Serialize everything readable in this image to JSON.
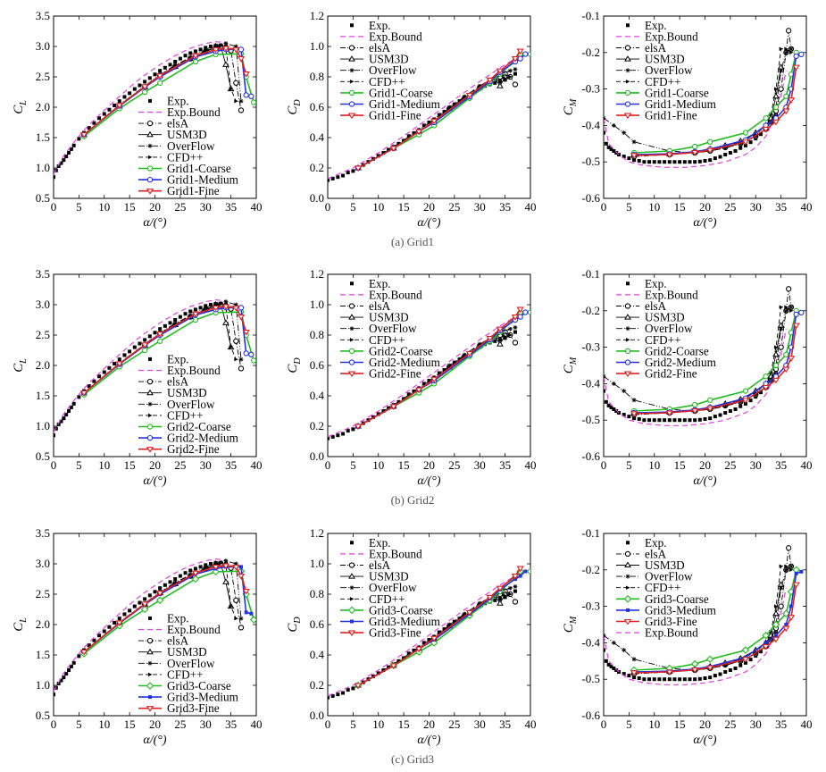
{
  "rows": [
    {
      "grid": "Grid1",
      "caption": "(a) Grid1"
    },
    {
      "grid": "Grid2",
      "caption": "(b) Grid2"
    },
    {
      "grid": "Grid3",
      "caption": "(c) Grid3"
    }
  ],
  "colors": {
    "exp": "#000000",
    "bound": "#e040e0",
    "coarse": "#22bb22",
    "medium": "#2233dd",
    "fine": "#dd2222",
    "ref": "#000000"
  },
  "chart_data": [
    {
      "id": "CL",
      "type": "line",
      "ylabel": "C",
      "ylabel_sub": "L",
      "xlabel": "α/(°)",
      "xlim": [
        0,
        40
      ],
      "ylim": [
        0.5,
        3.5
      ],
      "xticks": [
        0,
        5,
        10,
        15,
        20,
        25,
        30,
        35,
        40
      ],
      "xtick_labels": [
        "0",
        "5",
        "10",
        "15",
        "20",
        "25",
        "30",
        "35",
        "40"
      ],
      "yticks": [
        0.5,
        1.0,
        1.5,
        2.0,
        2.5,
        3.0,
        3.5
      ],
      "ytick_labels": [
        "0.5",
        "1.0",
        "1.5",
        "2.0",
        "2.5",
        "3.0",
        "3.5"
      ],
      "legend_pos": "bottom-right",
      "series": [
        {
          "name": "Exp.",
          "style": "exp",
          "x": [
            0,
            0.5,
            1,
            1.5,
            2,
            2.5,
            3,
            3.5,
            4,
            5,
            6,
            7,
            8,
            9,
            10,
            11,
            12,
            13,
            14,
            15,
            16,
            17,
            18,
            19,
            20,
            21,
            22,
            23,
            24,
            25,
            26,
            27,
            28,
            29,
            30,
            31,
            32,
            33,
            34
          ],
          "y": [
            0.85,
            0.96,
            1.03,
            1.08,
            1.13,
            1.19,
            1.25,
            1.31,
            1.37,
            1.48,
            1.58,
            1.66,
            1.74,
            1.82,
            1.89,
            1.96,
            2.03,
            2.1,
            2.17,
            2.23,
            2.3,
            2.36,
            2.42,
            2.48,
            2.54,
            2.6,
            2.65,
            2.7,
            2.75,
            2.8,
            2.85,
            2.89,
            2.92,
            2.95,
            2.98,
            3.0,
            3.01,
            3.02,
            3.0
          ]
        },
        {
          "name": "Exp.Bound",
          "style": "bound",
          "x": [
            0,
            2,
            4,
            6,
            8,
            10,
            13,
            16,
            18,
            21,
            24,
            27,
            30,
            32,
            34
          ],
          "y": [
            0.9,
            1.2,
            1.42,
            1.62,
            1.79,
            1.95,
            2.18,
            2.4,
            2.53,
            2.7,
            2.85,
            2.97,
            3.05,
            3.08,
            3.06
          ]
        },
        {
          "name": "elsA",
          "style": "elsA",
          "x": [
            6,
            13,
            18,
            21,
            24,
            27,
            30,
            32,
            33,
            34,
            35,
            36,
            37
          ],
          "y": [
            1.55,
            2.02,
            2.33,
            2.52,
            2.67,
            2.8,
            2.92,
            2.98,
            3.0,
            2.98,
            2.93,
            2.4,
            1.95
          ]
        },
        {
          "name": "USM3D",
          "style": "usm3d",
          "x": [
            6,
            13,
            18,
            21,
            24,
            27,
            30,
            32,
            33,
            34,
            35
          ],
          "y": [
            1.55,
            2.02,
            2.33,
            2.52,
            2.67,
            2.8,
            2.92,
            2.98,
            3.0,
            2.7,
            2.3
          ]
        },
        {
          "name": "OverFlow",
          "style": "overflow",
          "x": [
            6,
            13,
            18,
            21,
            24,
            27,
            30,
            32,
            34,
            36,
            37
          ],
          "y": [
            1.55,
            2.04,
            2.35,
            2.54,
            2.69,
            2.82,
            2.95,
            3.02,
            3.05,
            3.0,
            2.1
          ]
        },
        {
          "name": "CFD++",
          "style": "cfdpp",
          "x": [
            6,
            13,
            18,
            21,
            24,
            27,
            30,
            32,
            33,
            34,
            35,
            36
          ],
          "y": [
            1.55,
            2.03,
            2.34,
            2.53,
            2.68,
            2.81,
            2.93,
            2.99,
            3.01,
            2.98,
            2.3,
            2.1
          ]
        },
        {
          "name": "{grid}-Coarse",
          "style": "coarse",
          "x": [
            6,
            13,
            18,
            21,
            28,
            32,
            37,
            38,
            39.5
          ],
          "y": [
            1.52,
            1.98,
            2.25,
            2.4,
            2.75,
            2.87,
            2.88,
            2.5,
            2.08
          ]
        },
        {
          "name": "{grid}-Medium",
          "style": "medium",
          "x": [
            6,
            13,
            18,
            21,
            28,
            32,
            34,
            37,
            38,
            39
          ],
          "y": [
            1.55,
            2.02,
            2.33,
            2.5,
            2.83,
            2.92,
            2.95,
            2.95,
            2.2,
            2.18
          ]
        },
        {
          "name": "{grid}-Fine",
          "style": "fine",
          "x": [
            6,
            13,
            18,
            21,
            28,
            32,
            34,
            36,
            37,
            38
          ],
          "y": [
            1.55,
            2.03,
            2.34,
            2.52,
            2.85,
            2.95,
            2.97,
            2.95,
            2.8,
            2.55
          ]
        }
      ]
    },
    {
      "id": "CD",
      "type": "line",
      "ylabel": "C",
      "ylabel_sub": "D",
      "xlabel": "α/(°)",
      "xlim": [
        0,
        40
      ],
      "ylim": [
        0.0,
        1.2
      ],
      "xticks": [
        0,
        5,
        10,
        15,
        20,
        25,
        30,
        35,
        40
      ],
      "xtick_labels": [
        "0",
        "5",
        "10",
        "15",
        "20",
        "25",
        "30",
        "35",
        "40"
      ],
      "yticks": [
        0.0,
        0.2,
        0.4,
        0.6,
        0.8,
        1.0,
        1.2
      ],
      "ytick_labels": [
        "0.0",
        "0.2",
        "0.4",
        "0.6",
        "0.8",
        "1.0",
        "1.2"
      ],
      "legend_pos": "top-left",
      "series": [
        {
          "name": "Exp.",
          "style": "exp",
          "x": [
            0,
            1,
            2,
            3,
            4,
            5,
            6,
            7,
            8,
            9,
            10,
            11,
            12,
            13,
            14,
            15,
            16,
            17,
            18,
            19,
            20,
            21,
            22,
            23,
            24,
            25,
            26,
            27,
            28,
            29,
            30,
            31,
            32,
            33,
            34,
            35,
            36,
            37
          ],
          "y": [
            0.12,
            0.13,
            0.14,
            0.15,
            0.17,
            0.18,
            0.2,
            0.22,
            0.24,
            0.26,
            0.28,
            0.3,
            0.32,
            0.34,
            0.36,
            0.38,
            0.41,
            0.43,
            0.45,
            0.48,
            0.5,
            0.52,
            0.55,
            0.57,
            0.59,
            0.62,
            0.64,
            0.66,
            0.68,
            0.7,
            0.72,
            0.74,
            0.75,
            0.76,
            0.77,
            0.78,
            0.8,
            0.82
          ]
        },
        {
          "name": "Exp.Bound",
          "style": "bound",
          "x": [
            0,
            5,
            10,
            15,
            20,
            25,
            30,
            34,
            37
          ],
          "y": [
            0.13,
            0.2,
            0.3,
            0.41,
            0.53,
            0.65,
            0.77,
            0.86,
            0.92
          ]
        },
        {
          "name": "elsA",
          "style": "elsA",
          "x": [
            6,
            13,
            18,
            21,
            24,
            27,
            30,
            32,
            34,
            35,
            36,
            37
          ],
          "y": [
            0.2,
            0.33,
            0.44,
            0.51,
            0.59,
            0.66,
            0.73,
            0.77,
            0.8,
            0.82,
            0.8,
            0.75
          ]
        },
        {
          "name": "USM3D",
          "style": "usm3d",
          "x": [
            6,
            13,
            18,
            21,
            24,
            27,
            30,
            32,
            33,
            34,
            35
          ],
          "y": [
            0.2,
            0.33,
            0.44,
            0.51,
            0.59,
            0.66,
            0.73,
            0.77,
            0.79,
            0.74,
            0.8
          ]
        },
        {
          "name": "OverFlow",
          "style": "overflow",
          "x": [
            6,
            13,
            18,
            21,
            24,
            27,
            30,
            32,
            34,
            36,
            37
          ],
          "y": [
            0.2,
            0.34,
            0.45,
            0.52,
            0.6,
            0.67,
            0.74,
            0.78,
            0.82,
            0.84,
            0.85
          ]
        },
        {
          "name": "CFD++",
          "style": "cfdpp",
          "x": [
            6,
            13,
            18,
            21,
            24,
            27,
            30,
            32,
            33,
            34,
            35,
            36
          ],
          "y": [
            0.2,
            0.33,
            0.44,
            0.51,
            0.59,
            0.66,
            0.73,
            0.77,
            0.79,
            0.81,
            0.79,
            0.8
          ]
        },
        {
          "name": "{grid}-Coarse",
          "style": "coarse",
          "x": [
            6,
            13,
            18,
            21,
            28,
            32,
            34,
            37,
            38,
            40
          ],
          "y": [
            0.2,
            0.33,
            0.42,
            0.48,
            0.66,
            0.76,
            0.82,
            0.91,
            0.95,
            0.95
          ]
        },
        {
          "name": "{grid}-Medium",
          "style": "medium",
          "x": [
            6,
            13,
            18,
            21,
            28,
            32,
            34,
            37,
            38,
            39
          ],
          "y": [
            0.2,
            0.33,
            0.44,
            0.5,
            0.67,
            0.77,
            0.83,
            0.9,
            0.92,
            0.95
          ]
        },
        {
          "name": "{grid}-Fine",
          "style": "fine",
          "x": [
            6,
            13,
            18,
            21,
            28,
            32,
            34,
            37,
            38
          ],
          "y": [
            0.2,
            0.33,
            0.44,
            0.51,
            0.68,
            0.78,
            0.84,
            0.92,
            0.97
          ]
        }
      ]
    },
    {
      "id": "CM",
      "type": "line",
      "ylabel": "C",
      "ylabel_sub": "M",
      "xlabel": "α/(°)",
      "xlim": [
        0,
        40
      ],
      "ylim": [
        -0.6,
        -0.1
      ],
      "xticks": [
        0,
        5,
        10,
        15,
        20,
        25,
        30,
        35,
        40
      ],
      "xtick_labels": [
        "0",
        "5",
        "10",
        "15",
        "20",
        "25",
        "30",
        "35",
        "40"
      ],
      "yticks": [
        -0.6,
        -0.5,
        -0.4,
        -0.3,
        -0.2,
        -0.1
      ],
      "ytick_labels": [
        "-0.6",
        "-0.5",
        "-0.4",
        "-0.3",
        "-0.2",
        "-0.1"
      ],
      "legend_pos": "top-left",
      "series": [
        {
          "name": "Exp.",
          "style": "exp",
          "x": [
            0,
            0.5,
            1,
            1.5,
            2,
            2.5,
            3,
            4,
            5,
            6,
            7,
            8,
            9,
            10,
            11,
            12,
            13,
            14,
            15,
            16,
            17,
            18,
            19,
            20,
            21,
            22,
            23,
            24,
            25,
            26,
            27,
            28,
            29,
            30,
            31,
            32,
            33,
            34
          ],
          "y": [
            -0.42,
            -0.45,
            -0.46,
            -0.465,
            -0.47,
            -0.475,
            -0.48,
            -0.485,
            -0.49,
            -0.495,
            -0.497,
            -0.5,
            -0.5,
            -0.5,
            -0.5,
            -0.5,
            -0.5,
            -0.5,
            -0.5,
            -0.5,
            -0.5,
            -0.5,
            -0.499,
            -0.497,
            -0.495,
            -0.49,
            -0.486,
            -0.48,
            -0.475,
            -0.47,
            -0.462,
            -0.455,
            -0.446,
            -0.436,
            -0.424,
            -0.41,
            -0.39,
            -0.37
          ]
        },
        {
          "name": "Exp.Bound",
          "style": "bound",
          "x": [
            0,
            1,
            3,
            5,
            8,
            12,
            16,
            20,
            24,
            28,
            30,
            32,
            33,
            34,
            35,
            36
          ],
          "y": [
            -0.38,
            -0.45,
            -0.48,
            -0.5,
            -0.51,
            -0.515,
            -0.515,
            -0.51,
            -0.5,
            -0.48,
            -0.46,
            -0.43,
            -0.4,
            -0.37,
            -0.32,
            -0.25
          ]
        },
        {
          "name": "elsA",
          "style": "elsA",
          "x": [
            6,
            13,
            18,
            21,
            24,
            27,
            30,
            32,
            33,
            34,
            35,
            36,
            36.5,
            37
          ],
          "y": [
            -0.485,
            -0.48,
            -0.475,
            -0.47,
            -0.46,
            -0.45,
            -0.43,
            -0.41,
            -0.39,
            -0.36,
            -0.3,
            -0.2,
            -0.14,
            -0.19
          ]
        },
        {
          "name": "USM3D",
          "style": "usm3d",
          "x": [
            6,
            13,
            18,
            21,
            24,
            27,
            30,
            32,
            33,
            34,
            35
          ],
          "y": [
            -0.48,
            -0.478,
            -0.472,
            -0.465,
            -0.455,
            -0.443,
            -0.42,
            -0.4,
            -0.38,
            -0.32,
            -0.24
          ]
        },
        {
          "name": "OverFlow",
          "style": "overflow",
          "x": [
            0,
            2,
            4,
            6,
            13,
            18,
            21,
            24,
            27,
            30,
            32,
            33,
            34,
            35,
            36,
            37
          ],
          "y": [
            -0.38,
            -0.4,
            -0.42,
            -0.445,
            -0.47,
            -0.475,
            -0.47,
            -0.462,
            -0.45,
            -0.43,
            -0.41,
            -0.39,
            -0.35,
            -0.25,
            -0.2,
            -0.19
          ]
        },
        {
          "name": "CFD++",
          "style": "cfdpp",
          "x": [
            6,
            13,
            18,
            21,
            24,
            27,
            30,
            32,
            33,
            34,
            35,
            36,
            37
          ],
          "y": [
            -0.483,
            -0.48,
            -0.473,
            -0.467,
            -0.457,
            -0.445,
            -0.425,
            -0.4,
            -0.37,
            -0.3,
            -0.19,
            -0.19,
            -0.2
          ]
        },
        {
          "name": "{grid}-Coarse",
          "style": "coarse",
          "x": [
            6,
            13,
            18,
            21,
            28,
            32,
            34,
            36,
            37,
            38
          ],
          "y": [
            -0.475,
            -0.47,
            -0.458,
            -0.445,
            -0.42,
            -0.38,
            -0.35,
            -0.32,
            -0.26,
            -0.2
          ]
        },
        {
          "name": "{grid}-Medium",
          "style": "medium",
          "x": [
            6,
            13,
            18,
            21,
            28,
            32,
            34,
            36,
            37,
            38,
            39
          ],
          "y": [
            -0.48,
            -0.478,
            -0.472,
            -0.465,
            -0.44,
            -0.4,
            -0.38,
            -0.35,
            -0.3,
            -0.21,
            -0.205
          ]
        },
        {
          "name": "{grid}-Fine",
          "style": "fine",
          "x": [
            6,
            13,
            18,
            21,
            28,
            32,
            34,
            36,
            37,
            38
          ],
          "y": [
            -0.482,
            -0.48,
            -0.474,
            -0.468,
            -0.445,
            -0.41,
            -0.39,
            -0.36,
            -0.33,
            -0.24
          ]
        }
      ]
    }
  ]
}
